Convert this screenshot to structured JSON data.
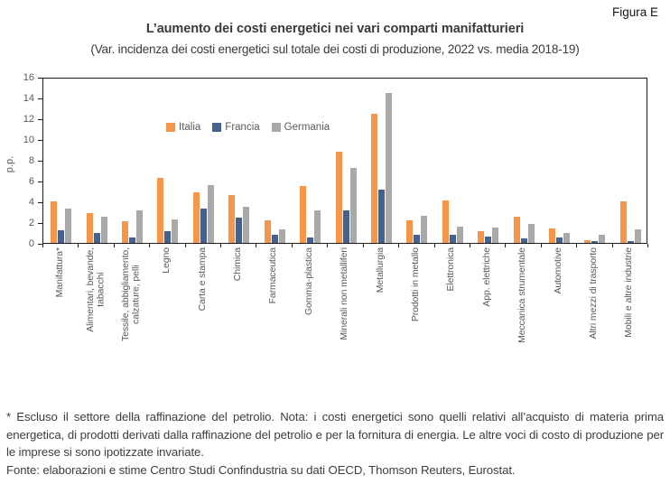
{
  "header": {
    "figure_label": "Figura E",
    "title": "L’aumento dei costi energetici nei vari comparti manifatturieri",
    "subtitle": "(Var. incidenza dei costi energetici sul totale dei costi di produzione, 2022 vs. media 2018-19)"
  },
  "chart_data": {
    "type": "bar",
    "title": "L’aumento dei costi energetici nei vari comparti manifatturieri",
    "xlabel": "",
    "ylabel": "p.p.",
    "ylim": [
      0,
      16
    ],
    "yticks": [
      0,
      2,
      4,
      6,
      8,
      10,
      12,
      14,
      16
    ],
    "grid": false,
    "legend_position": "inside-top-left",
    "categories": [
      "Manifattura*",
      "Alimentari, bevande,\ntabacchi",
      "Tessile, abbigliamento,\ncalzature, pelli",
      "Legno",
      "Carta e stampa",
      "Chimica",
      "Farmaceutica",
      "Gomma-plastica",
      "Minerali non metalliferi",
      "Metallurgia",
      "Prodotti in metallo",
      "Elettronica",
      "App. elettriche",
      "Meccanica strumentale",
      "Automotive",
      "Altri mezzi di trasporto",
      "Mobili e altre industrie"
    ],
    "series": [
      {
        "name": "Italia",
        "color": "#F5964A",
        "values": [
          4.0,
          2.9,
          2.1,
          6.3,
          4.9,
          4.6,
          2.2,
          5.5,
          8.8,
          12.4,
          2.2,
          4.1,
          1.1,
          2.5,
          1.4,
          0.3,
          4.0
        ]
      },
      {
        "name": "Francia",
        "color": "#47618E",
        "values": [
          1.2,
          1.0,
          0.5,
          1.1,
          3.3,
          2.4,
          0.8,
          0.5,
          3.1,
          5.1,
          0.8,
          0.8,
          0.6,
          0.4,
          0.5,
          0.2,
          0.2
        ]
      },
      {
        "name": "Germania",
        "color": "#A9A9A9",
        "values": [
          3.3,
          2.5,
          3.1,
          2.3,
          5.6,
          3.5,
          1.3,
          3.1,
          7.2,
          14.4,
          2.6,
          1.6,
          1.5,
          1.8,
          1.0,
          0.8,
          1.3
        ]
      }
    ]
  },
  "footer": {
    "note": "* Escluso il settore della raffinazione del petrolio. Nota: i costi energetici sono quelli relativi all’acquisto di materia prima energetica, di prodotti derivati dalla raffinazione del petrolio e per la fornitura di energia. Le altre voci di costo di produzione per le imprese si sono ipotizzate invariate.",
    "source": "Fonte: elaborazioni e stime Centro Studi Confindustria su dati OECD, Thomson Reuters, Eurostat."
  }
}
